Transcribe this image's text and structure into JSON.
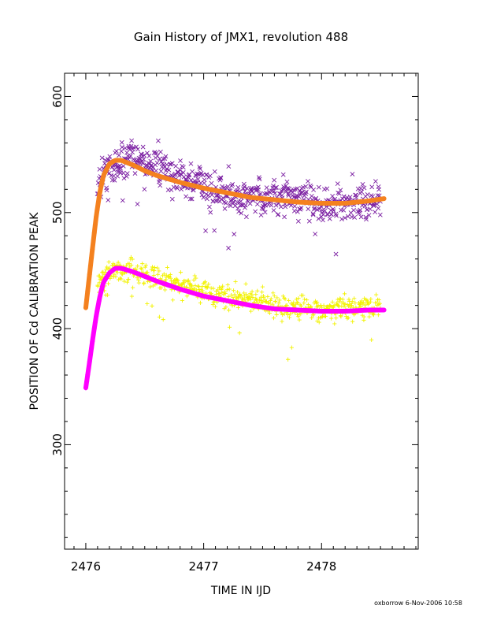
{
  "chart_data": {
    "type": "scatter",
    "title": "Gain History of JMX1, revolution 488",
    "xlabel": "TIME IN IJD",
    "ylabel": "POSITION OF Cd CALIBRATION PEAK",
    "xlim": [
      2475.82,
      2478.82
    ],
    "ylim": [
      210,
      620
    ],
    "x_ticks": [
      2476,
      2477,
      2478
    ],
    "x_tick_labels": [
      "2476",
      "2477",
      "2478"
    ],
    "y_ticks": [
      300,
      400,
      500,
      600
    ],
    "y_tick_labels": [
      "300",
      "400",
      "500",
      "600"
    ],
    "grid": false,
    "legend": "none",
    "footer": "oxborrow  6-Nov-2006 10:58",
    "series": [
      {
        "marker": "x",
        "color": "#7b1fa2",
        "x": [
          2476.1,
          2476.15,
          2476.2,
          2476.25,
          2476.3,
          2476.4,
          2476.5,
          2476.6,
          2476.75,
          2476.9,
          2477.0,
          2477.1,
          2477.25,
          2477.4,
          2477.55,
          2477.7,
          2477.85,
          2478.0,
          2478.15,
          2478.3,
          2478.5
        ],
        "y": [
          520,
          535,
          540,
          542,
          545,
          548,
          545,
          540,
          532,
          526,
          524,
          518,
          514,
          512,
          512,
          515,
          510,
          506,
          508,
          508,
          512
        ]
      },
      {
        "marker": "line",
        "color": "#f4811f",
        "x": [
          2476.0,
          2476.03,
          2476.06,
          2476.09,
          2476.12,
          2476.15,
          2476.2,
          2476.25,
          2476.3,
          2476.4,
          2476.5,
          2476.6,
          2476.8,
          2477.0,
          2477.2,
          2477.4,
          2477.6,
          2477.8,
          2478.0,
          2478.2,
          2478.4,
          2478.53
        ],
        "y": [
          418,
          445,
          472,
          498,
          518,
          532,
          542,
          545,
          545,
          541,
          536,
          532,
          526,
          521,
          517,
          513,
          511,
          509,
          508,
          508,
          510,
          512
        ]
      },
      {
        "marker": "+",
        "color": "#f2f200",
        "x": [
          2476.1,
          2476.15,
          2476.2,
          2476.3,
          2476.4,
          2476.5,
          2476.6,
          2476.75,
          2476.9,
          2477.0,
          2477.1,
          2477.25,
          2477.4,
          2477.55,
          2477.7,
          2477.85,
          2477.95,
          2478.1,
          2478.25,
          2478.4,
          2478.5
        ],
        "y": [
          438,
          445,
          448,
          450,
          450,
          447,
          444,
          440,
          435,
          432,
          430,
          427,
          424,
          421,
          419,
          418,
          416,
          416,
          418,
          419,
          418
        ]
      },
      {
        "marker": "line",
        "color": "#ff00ff",
        "x": [
          2476.0,
          2476.03,
          2476.06,
          2476.09,
          2476.12,
          2476.15,
          2476.2,
          2476.25,
          2476.3,
          2476.4,
          2476.5,
          2476.6,
          2476.8,
          2477.0,
          2477.2,
          2477.4,
          2477.6,
          2477.8,
          2478.0,
          2478.2,
          2478.4,
          2478.53
        ],
        "y": [
          349,
          370,
          392,
          412,
          428,
          440,
          448,
          452,
          452,
          449,
          445,
          441,
          434,
          428,
          424,
          420,
          417,
          416,
          415,
          415,
          416,
          416
        ]
      }
    ]
  }
}
